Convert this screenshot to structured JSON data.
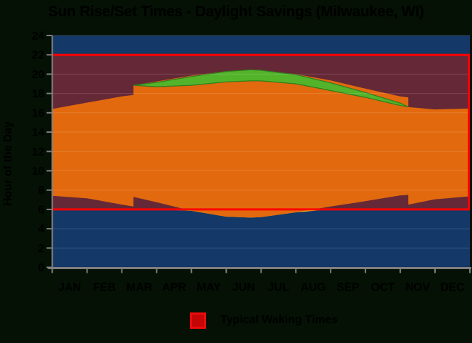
{
  "canvas": {
    "background": "#041104"
  },
  "chart_data": {
    "type": "area",
    "title": "Sun Rise/Set Times - Daylight Savings  (Milwaukee, WI)",
    "ylabel": "Hour of the Day",
    "xlabel": "",
    "ylim": [
      0,
      24
    ],
    "ytick_step": 2,
    "x_range": [
      0,
      12
    ],
    "x_unit": "months (0 = Jan 1, 12 = Dec 31)",
    "grid": true,
    "xticklabels": [
      "JAN",
      "FEB",
      "MAR",
      "APR",
      "MAY",
      "JUN",
      "JUL",
      "AUG",
      "SEP",
      "OCT",
      "NOV",
      "DEC"
    ],
    "waking": {
      "start": 6,
      "end": 22
    },
    "dst_transitions_x": [
      2.33,
      10.23
    ],
    "series": {
      "sunrise_hour": [
        [
          0,
          7.4
        ],
        [
          1,
          7.15
        ],
        [
          2,
          6.5
        ],
        [
          2.33,
          6.3
        ],
        [
          2.33,
          7.3
        ],
        [
          3,
          6.75
        ],
        [
          4,
          5.85
        ],
        [
          5,
          5.25
        ],
        [
          5.7,
          5.15
        ],
        [
          6,
          5.2
        ],
        [
          7,
          5.7
        ],
        [
          8,
          6.3
        ],
        [
          9,
          6.85
        ],
        [
          10,
          7.45
        ],
        [
          10.23,
          7.5
        ],
        [
          10.23,
          6.5
        ],
        [
          11,
          7.05
        ],
        [
          12,
          7.35
        ]
      ],
      "sunset_hour": [
        [
          0,
          16.4
        ],
        [
          1,
          17.05
        ],
        [
          2,
          17.7
        ],
        [
          2.33,
          17.85
        ],
        [
          2.33,
          18.85
        ],
        [
          3,
          19.25
        ],
        [
          4,
          19.85
        ],
        [
          5,
          20.3
        ],
        [
          5.7,
          20.45
        ],
        [
          6,
          20.4
        ],
        [
          7,
          20.0
        ],
        [
          8,
          19.35
        ],
        [
          9,
          18.5
        ],
        [
          10,
          17.7
        ],
        [
          10.23,
          17.6
        ],
        [
          10.23,
          16.6
        ],
        [
          11,
          16.35
        ],
        [
          12,
          16.45
        ]
      ],
      "dst_evening_band": [
        {
          "x": 2.33,
          "top": 18.85,
          "bottom": 18.85
        },
        {
          "x": 3,
          "top": 19.15,
          "bottom": 18.7
        },
        {
          "x": 4,
          "top": 19.75,
          "bottom": 18.85
        },
        {
          "x": 5,
          "top": 20.28,
          "bottom": 19.2
        },
        {
          "x": 5.7,
          "top": 20.45,
          "bottom": 19.3
        },
        {
          "x": 6,
          "top": 20.4,
          "bottom": 19.3
        },
        {
          "x": 7,
          "top": 19.95,
          "bottom": 19.0
        },
        {
          "x": 8,
          "top": 19.1,
          "bottom": 18.3
        },
        {
          "x": 9,
          "top": 18.1,
          "bottom": 17.6
        },
        {
          "x": 10,
          "top": 17.0,
          "bottom": 16.75
        },
        {
          "x": 10.23,
          "top": 16.6,
          "bottom": 16.6
        }
      ]
    },
    "colors": {
      "night": "#143867",
      "dark_waking": "#652836",
      "daylight": "#e2690d",
      "early_morning_daylight": "#fcc413",
      "dst_bonus": "#53b32a",
      "dst_bonus_edge": "#2e7d1e",
      "waking_line": "#ff0000",
      "axis": "#7f7f7f",
      "gridline": "rgba(255,255,255,0.14)",
      "text": "#000000"
    },
    "legend": [
      {
        "label": "Typical Waking Times",
        "color": "#c40606"
      }
    ],
    "legend_position": "bottom-center"
  }
}
